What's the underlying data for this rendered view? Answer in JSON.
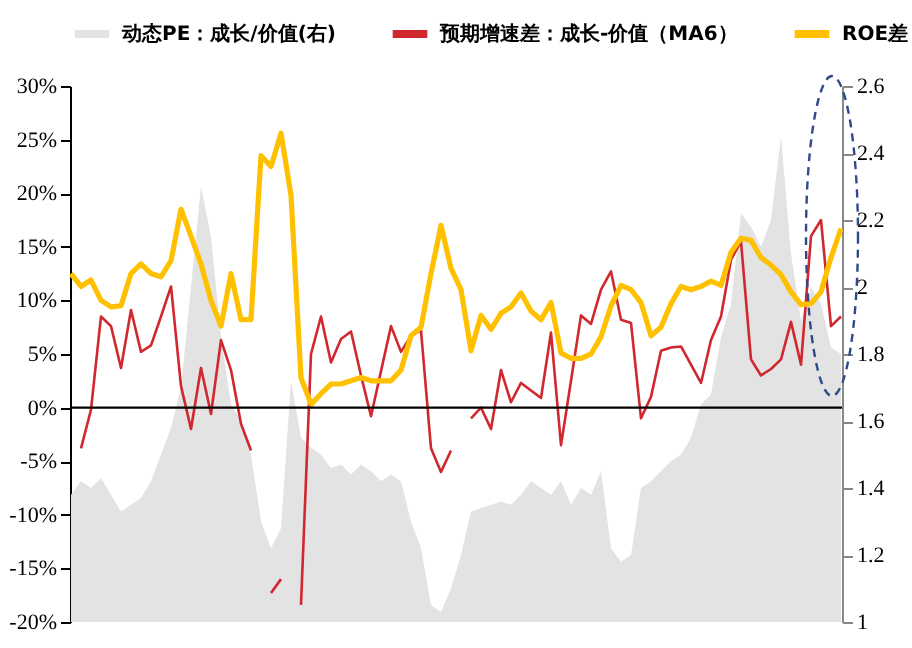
{
  "chart_data": {
    "type": "line",
    "categories": [
      null,
      null,
      null,
      null,
      null,
      null,
      null,
      null,
      null,
      null,
      null,
      null,
      null,
      null,
      null,
      null,
      null,
      null,
      null,
      null,
      null,
      null,
      null,
      null,
      null,
      null,
      null,
      null,
      null,
      null,
      null,
      null,
      null,
      null,
      null,
      null,
      null,
      null,
      null,
      null,
      null,
      null,
      null,
      null,
      null,
      null,
      null,
      null,
      null,
      null,
      null,
      null,
      null,
      null,
      null,
      null,
      null,
      null,
      null,
      null,
      null,
      null,
      null,
      null,
      null,
      null,
      null,
      null,
      null,
      null,
      null,
      null,
      null,
      null,
      null,
      null,
      null,
      null
    ],
    "series": [
      {
        "name": "动态PE：成长/价值(右)",
        "type": "area",
        "axis": "y2",
        "color": "#e3e3e3",
        "values": [
          1.38,
          1.42,
          1.4,
          1.43,
          1.38,
          1.33,
          1.35,
          1.37,
          1.42,
          1.5,
          1.58,
          1.7,
          2.0,
          2.3,
          2.15,
          1.85,
          1.65,
          1.6,
          1.5,
          1.3,
          1.22,
          1.28,
          1.72,
          1.55,
          1.52,
          1.5,
          1.46,
          1.47,
          1.44,
          1.47,
          1.45,
          1.42,
          1.44,
          1.42,
          1.3,
          1.22,
          1.05,
          1.03,
          1.1,
          1.2,
          1.33,
          1.34,
          1.35,
          1.36,
          1.35,
          1.38,
          1.42,
          1.4,
          1.38,
          1.42,
          1.35,
          1.4,
          1.38,
          1.45,
          1.22,
          1.18,
          1.2,
          1.4,
          1.42,
          1.45,
          1.48,
          1.5,
          1.55,
          1.65,
          1.68,
          1.85,
          1.95,
          2.22,
          2.18,
          2.12,
          2.2,
          2.45,
          2.1,
          1.9,
          2.0,
          1.95,
          1.82,
          1.8
        ]
      },
      {
        "name": "预期增速差：成长-价值（MA6）",
        "color": "#d0282e",
        "values": [
          null,
          -3.8,
          -0.2,
          8.5,
          7.6,
          3.7,
          9.1,
          5.2,
          5.8,
          8.5,
          11.3,
          2.0,
          -2.0,
          3.7,
          -0.6,
          6.3,
          3.5,
          -1.5,
          -4,
          null,
          -17.3,
          -16,
          null,
          -18.4,
          5,
          8.5,
          4.2,
          6.4,
          7.1,
          3.0,
          -0.8,
          3.4,
          7.6,
          5.2,
          6.7,
          7.2,
          -3.8,
          -6.0,
          -4.0,
          null,
          -1,
          0,
          -2,
          3.5,
          0.5,
          2.3,
          1.6,
          0.9,
          7,
          -3.5,
          2.5,
          8.6,
          7.8,
          11,
          12.7,
          8.2,
          7.9,
          -1,
          1,
          5.3,
          5.6,
          5.7,
          4,
          2.3,
          6.3,
          8.5,
          13.8,
          15.5,
          4.5,
          3,
          3.6,
          4.5,
          8,
          4,
          16,
          17.5,
          7.6,
          8.5
        ]
      },
      {
        "name": "ROE差",
        "color": "#ffc000",
        "values": [
          12.5,
          11.3,
          11.9,
          10,
          9.4,
          9.5,
          12.5,
          13.4,
          12.5,
          12.2,
          13.7,
          18.5,
          16,
          13.4,
          10,
          7.6,
          12.5,
          8.2,
          8.2,
          23.5,
          22.5,
          25.6,
          19.8,
          2.8,
          0.3,
          1.3,
          2.2,
          2.2,
          2.5,
          2.8,
          2.5,
          2.5,
          2.5,
          3.5,
          6.7,
          7.5,
          12.5,
          17,
          13,
          11,
          5.3,
          8.6,
          7.3,
          8.8,
          9.4,
          10.7,
          9,
          8.2,
          9.8,
          5.1,
          4.6,
          4.6,
          5.0,
          6.6,
          9.5,
          11.4,
          11,
          9.8,
          6.7,
          7.5,
          9.7,
          11.3,
          11.0,
          11.3,
          11.8,
          11.4,
          14.5,
          15.8,
          15.6,
          14,
          13.3,
          12.4,
          10.8,
          9.6,
          9.7,
          10.8,
          14,
          16.7
        ]
      }
    ],
    "ylim": [
      -20,
      30
    ],
    "yticks": [
      {
        "value": -20,
        "label": "-20%"
      },
      {
        "value": -15,
        "label": "-15%"
      },
      {
        "value": -10,
        "label": "-10%"
      },
      {
        "value": -5,
        "label": "-5%"
      },
      {
        "value": 0,
        "label": "0%"
      },
      {
        "value": 5,
        "label": "5%"
      },
      {
        "value": 10,
        "label": "10%"
      },
      {
        "value": 15,
        "label": "15%"
      },
      {
        "value": 20,
        "label": "20%"
      },
      {
        "value": 25,
        "label": "25%"
      },
      {
        "value": 30,
        "label": "30%"
      }
    ],
    "y2lim": [
      1,
      2.6
    ],
    "y2ticks": [
      1,
      1.2,
      1.4,
      1.6,
      1.8,
      2,
      2.2,
      2.4,
      2.6
    ],
    "ref_lines": [
      {
        "axis": "y",
        "value": 0,
        "color": "#000000"
      }
    ],
    "legend": "top",
    "grid": false
  }
}
